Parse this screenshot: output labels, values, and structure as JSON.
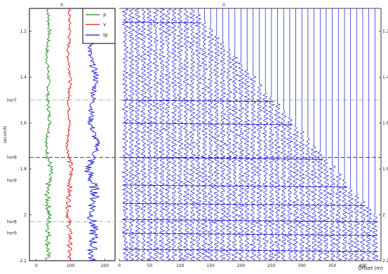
{
  "figure": {
    "left_panel": {
      "ylabel": "seconds",
      "top_tick_label": "0",
      "y_ticks": [
        "1.2",
        "1.4",
        "1.6",
        "1.8",
        "2",
        "2.2"
      ],
      "x_ticks": [
        "0",
        "100",
        "200"
      ],
      "event_labels": [
        "hor7",
        "hor8",
        "hor9",
        "hor8",
        "hor9"
      ],
      "legend": [
        {
          "label": "ρ",
          "color": "#1a8a1a"
        },
        {
          "label": "v",
          "color": "#e01010"
        },
        {
          "label": "Ip",
          "color": "#1010d0"
        }
      ]
    },
    "right_panel": {
      "top_tick_label": "0",
      "x_ticks": [
        "0",
        "50",
        "100",
        "150",
        "200",
        "250",
        "300",
        "350",
        "400"
      ],
      "xlabel": "Offset (m)",
      "right_y_ticks": [
        "1.2",
        "1.4",
        "1.6",
        "1.8",
        "2",
        "2.2"
      ]
    },
    "colors": {
      "density": "#1a8a1a",
      "velocity": "#e01010",
      "impedance": "#1010d0",
      "trace": "#1515d5",
      "horizon": "#8aa08a",
      "axis": "#000000"
    }
  },
  "chart_data": [
    {
      "type": "line",
      "panel": "well-logs",
      "ylabel": "seconds",
      "ylim": [
        1.1,
        2.2
      ],
      "x_ticks": [
        0,
        100,
        200
      ],
      "series": [
        {
          "name": "ρ",
          "x_center": 35,
          "y": [
            1.1,
            1.2,
            1.3,
            1.4,
            1.5,
            1.6,
            1.7,
            1.8,
            1.9,
            2.0,
            2.1,
            2.2
          ],
          "values": [
            34,
            38,
            30,
            36,
            33,
            40,
            28,
            42,
            31,
            37,
            35,
            33
          ]
        },
        {
          "name": "v",
          "x_center": 95,
          "y": [
            1.1,
            1.2,
            1.3,
            1.4,
            1.5,
            1.6,
            1.7,
            1.8,
            1.9,
            2.0,
            2.1,
            2.2
          ],
          "values": [
            95,
            98,
            92,
            100,
            94,
            97,
            90,
            102,
            96,
            93,
            99,
            95
          ]
        },
        {
          "name": "Ip",
          "x_center": 165,
          "y": [
            1.1,
            1.2,
            1.3,
            1.4,
            1.5,
            1.6,
            1.7,
            1.8,
            1.9,
            2.0,
            2.1,
            2.2
          ],
          "values": [
            160,
            170,
            155,
            175,
            165,
            158,
            180,
            150,
            172,
            162,
            168,
            160
          ]
        }
      ],
      "horizons": [
        {
          "label": "hor7",
          "t": 1.5,
          "style": "dash-dot"
        },
        {
          "label": "hor8",
          "t": 1.75,
          "style": "dashed"
        },
        {
          "label": "hor8",
          "t": 1.85,
          "style": "none"
        },
        {
          "label": "hor9",
          "t": 2.03,
          "style": "dash-dot"
        },
        {
          "label": "hor9",
          "t": 2.08,
          "style": "none"
        }
      ],
      "grid": false,
      "legend_position": "top-right"
    },
    {
      "type": "line",
      "panel": "seismic-gather",
      "xlabel": "Offset (m)",
      "xlim": [
        0,
        430
      ],
      "ylim": [
        1.1,
        2.2
      ],
      "x_ticks": [
        0,
        50,
        100,
        150,
        200,
        250,
        300,
        350,
        400
      ],
      "trace_offsets": [
        10,
        20,
        30,
        40,
        50,
        60,
        70,
        80,
        90,
        100,
        110,
        120,
        130,
        140,
        150,
        160,
        170,
        180,
        190,
        200,
        210,
        220,
        230,
        240,
        250,
        260,
        270,
        280,
        290,
        300,
        310,
        320,
        330,
        340,
        350,
        360,
        370,
        380,
        390,
        400,
        410,
        420
      ],
      "horizons": [
        {
          "label": "hor7",
          "t": 1.5,
          "style": "dash-dot"
        },
        {
          "label": "hor8",
          "t": 1.75,
          "style": "dashed"
        },
        {
          "label": "hor9",
          "t": 2.03,
          "style": "dash-dot"
        }
      ]
    }
  ]
}
